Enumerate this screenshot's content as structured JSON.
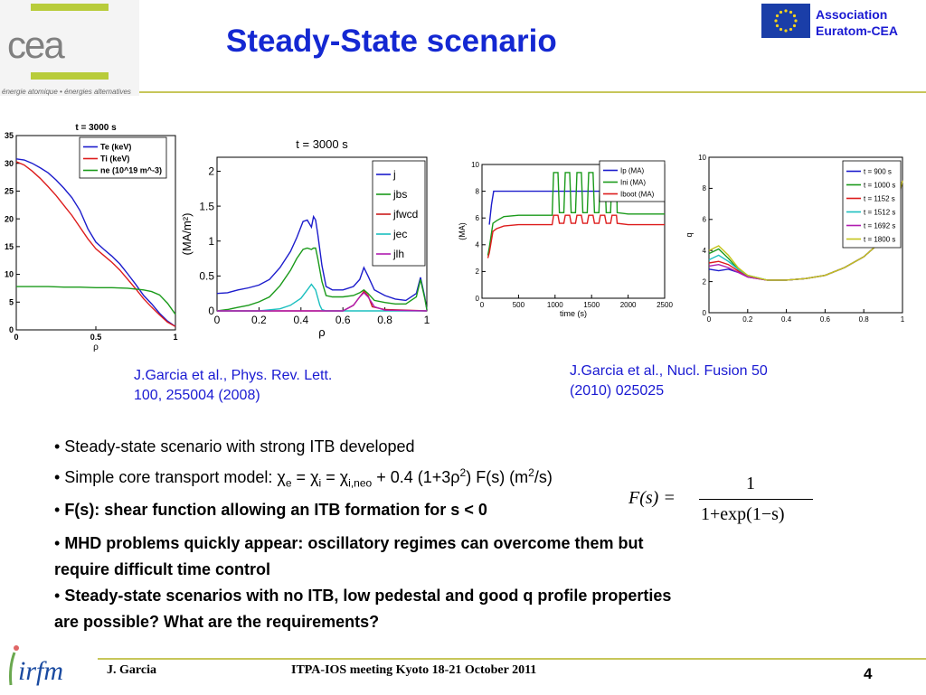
{
  "header": {
    "logo_text": "cea",
    "logo_tagline": "énergie atomique • énergies alternatives",
    "title": "Steady-State scenario",
    "association_line1": "Association",
    "association_line2": "Euratom-CEA"
  },
  "references": {
    "ref1_line1": "J.Garcia  et al., Phys. Rev. Lett.",
    "ref1_line2": "100, 255004 (2008)",
    "ref2_line1": "J.Garcia  et al., Nucl. Fusion 50",
    "ref2_line2": "(2010) 025025"
  },
  "bullets": {
    "b1": "• Steady-state scenario with strong ITB developed",
    "b2_prefix": "• Simple core transport model: ",
    "b2_chi": "χ",
    "b2_sub_e": "e",
    "b2_eq1": " = ",
    "b2_sub_i": "i",
    "b2_eq2": " = ",
    "b2_sub_ineo": "i,neo",
    "b2_rest1": " + 0.4 (1+3",
    "b2_rho": "ρ",
    "b2_sup2": "2",
    "b2_rest2": ") F(s)   (m",
    "b2_sup2b": "2",
    "b2_rest3": "/s)",
    "b3_bullet": "• ",
    "b3": "F(s): shear function allowing an ITB formation for s < 0",
    "b4_bullet": "• ",
    "b4_line1": "MHD problems quickly appear: oscillatory regimes can overcome them but",
    "b4_line2": "require difficult time control",
    "b5_bullet": "• ",
    "b5_line1": "Steady-state scenarios with no ITB, low pedestal and good q profile properties",
    "b5_line2": "are possible? What are the requirements?"
  },
  "equation": {
    "lhs": "F(s) =",
    "numerator": "1",
    "denominator": "1+exp(1−s)"
  },
  "footer": {
    "author": "J. Garcia",
    "meeting": "ITPA-IOS meeting Kyoto 18-21 October 2011",
    "page": "4",
    "logo": "irfm"
  },
  "chart_data": [
    {
      "type": "line",
      "title": "t = 3000 s",
      "xlabel": "ρ",
      "ylabel": "",
      "xlim": [
        0,
        1
      ],
      "ylim": [
        0,
        35
      ],
      "xticks": [
        "0",
        "0.5",
        "1"
      ],
      "yticks": [
        "0",
        "5",
        "10",
        "15",
        "20",
        "25",
        "30",
        "35"
      ],
      "legend": "top-right",
      "series": [
        {
          "name": "Te (keV)",
          "color": "#1c1ccc",
          "x": [
            0,
            0.05,
            0.1,
            0.15,
            0.2,
            0.25,
            0.3,
            0.35,
            0.4,
            0.45,
            0.5,
            0.55,
            0.6,
            0.65,
            0.7,
            0.75,
            0.8,
            0.85,
            0.9,
            0.95,
            1.0
          ],
          "y": [
            30.8,
            30.6,
            30.0,
            29.2,
            28.3,
            27.0,
            25.5,
            23.8,
            21.5,
            18.2,
            15.8,
            14.5,
            13.3,
            11.9,
            10.1,
            8.2,
            6.2,
            4.7,
            3.0,
            1.6,
            0.6
          ]
        },
        {
          "name": "Ti (keV)",
          "color": "#dd1c1c",
          "x": [
            0,
            0.05,
            0.1,
            0.15,
            0.2,
            0.25,
            0.3,
            0.35,
            0.4,
            0.45,
            0.5,
            0.55,
            0.6,
            0.65,
            0.7,
            0.75,
            0.8,
            0.85,
            0.9,
            0.95,
            1.0
          ],
          "y": [
            30.3,
            29.7,
            28.6,
            27.3,
            25.8,
            24.2,
            22.4,
            20.6,
            18.5,
            16.4,
            14.6,
            13.4,
            12.2,
            10.8,
            9.1,
            7.4,
            5.6,
            4.1,
            2.7,
            1.4,
            0.6
          ]
        },
        {
          "name": "ne (10^19 m^-3)",
          "color": "#1a9a1a",
          "x": [
            0,
            0.1,
            0.2,
            0.3,
            0.4,
            0.5,
            0.6,
            0.7,
            0.8,
            0.85,
            0.9,
            0.95,
            1.0
          ],
          "y": [
            7.8,
            7.8,
            7.8,
            7.7,
            7.7,
            7.6,
            7.6,
            7.5,
            7.2,
            6.9,
            6.3,
            4.8,
            2.8
          ]
        }
      ]
    },
    {
      "type": "line",
      "title": "t = 3000 s",
      "xlabel": "ρ",
      "ylabel": "(MA/m²)",
      "xlim": [
        0,
        1
      ],
      "ylim": [
        0,
        2.2
      ],
      "xticks": [
        "0",
        "0.2",
        "0.4",
        "0.6",
        "0.8",
        "1"
      ],
      "yticks": [
        "0",
        "0.5",
        "1",
        "1.5",
        "2"
      ],
      "legend": "top-right",
      "series": [
        {
          "name": "j",
          "color": "#1c1ccc",
          "x": [
            0,
            0.05,
            0.1,
            0.15,
            0.2,
            0.25,
            0.3,
            0.35,
            0.38,
            0.41,
            0.43,
            0.45,
            0.46,
            0.47,
            0.48,
            0.5,
            0.52,
            0.55,
            0.6,
            0.65,
            0.68,
            0.7,
            0.72,
            0.75,
            0.8,
            0.85,
            0.9,
            0.95,
            0.97,
            0.99,
            1.0
          ],
          "y": [
            0.25,
            0.26,
            0.3,
            0.33,
            0.37,
            0.45,
            0.62,
            0.85,
            1.05,
            1.28,
            1.3,
            1.2,
            1.35,
            1.3,
            1.1,
            0.65,
            0.35,
            0.3,
            0.3,
            0.35,
            0.45,
            0.62,
            0.5,
            0.3,
            0.22,
            0.17,
            0.15,
            0.25,
            0.48,
            0.2,
            0.02
          ]
        },
        {
          "name": "jbs",
          "color": "#1a9a1a",
          "x": [
            0,
            0.05,
            0.1,
            0.15,
            0.2,
            0.25,
            0.3,
            0.35,
            0.38,
            0.41,
            0.43,
            0.45,
            0.46,
            0.47,
            0.48,
            0.5,
            0.52,
            0.55,
            0.6,
            0.65,
            0.68,
            0.7,
            0.72,
            0.75,
            0.8,
            0.85,
            0.9,
            0.95,
            0.97,
            0.99,
            1.0
          ],
          "y": [
            0,
            0.02,
            0.05,
            0.08,
            0.13,
            0.2,
            0.36,
            0.58,
            0.75,
            0.88,
            0.9,
            0.88,
            0.9,
            0.9,
            0.75,
            0.42,
            0.22,
            0.2,
            0.2,
            0.22,
            0.26,
            0.3,
            0.25,
            0.15,
            0.12,
            0.1,
            0.1,
            0.2,
            0.45,
            0.18,
            0.02
          ]
        },
        {
          "name": "jfwcd",
          "color": "#cc1c1c",
          "x": [
            0,
            0.1,
            0.2,
            0.3,
            0.4,
            0.5,
            0.55,
            0.6,
            0.65,
            0.68,
            0.7,
            0.72,
            0.74,
            0.8,
            0.9,
            1.0
          ],
          "y": [
            0,
            0,
            0,
            0,
            0,
            0,
            0,
            0,
            0.08,
            0.2,
            0.28,
            0.22,
            0.06,
            0.02,
            0.01,
            0
          ]
        },
        {
          "name": "jec",
          "color": "#1bbfbf",
          "x": [
            0,
            0.2,
            0.3,
            0.35,
            0.4,
            0.43,
            0.45,
            0.47,
            0.49,
            0.5,
            0.52,
            0.6,
            1.0
          ],
          "y": [
            0,
            0,
            0.03,
            0.08,
            0.18,
            0.3,
            0.38,
            0.3,
            0.08,
            0.02,
            0,
            0,
            0
          ]
        },
        {
          "name": "jlh",
          "color": "#b01cb0",
          "x": [
            0,
            0.2,
            0.4,
            0.5,
            0.55,
            0.6,
            0.65,
            0.68,
            0.7,
            0.72,
            0.75,
            0.8,
            1.0
          ],
          "y": [
            0,
            0,
            0,
            0,
            0,
            0,
            0.08,
            0.2,
            0.26,
            0.2,
            0.06,
            0.01,
            0
          ]
        }
      ]
    },
    {
      "type": "line",
      "title": "",
      "xlabel": "time (s)",
      "ylabel": "(MA)",
      "xlim": [
        0,
        2500
      ],
      "ylim": [
        0,
        10
      ],
      "xticks": [
        "0",
        "500",
        "1000",
        "1500",
        "2000",
        "2500"
      ],
      "yticks": [
        "0",
        "2",
        "4",
        "6",
        "8",
        "10"
      ],
      "legend": "top-right",
      "series": [
        {
          "name": "Ip (MA)",
          "color": "#1c1ccc",
          "x": [
            100,
            130,
            160,
            200,
            500,
            1000,
            1500,
            2000,
            2500
          ],
          "y": [
            5.5,
            7.0,
            8.0,
            8.0,
            8.0,
            8.0,
            8.0,
            8.0,
            8.0
          ]
        },
        {
          "name": "Ini (MA)",
          "color": "#1a9a1a",
          "x": [
            80,
            100,
            150,
            200,
            300,
            500,
            700,
            900,
            960,
            980,
            1040,
            1060,
            1120,
            1140,
            1200,
            1220,
            1280,
            1300,
            1360,
            1380,
            1440,
            1460,
            1520,
            1540,
            1600,
            1620,
            1680,
            1700,
            1760,
            1780,
            1840,
            1850,
            2000,
            2200,
            2500
          ],
          "y": [
            3.2,
            3.8,
            5.6,
            5.8,
            6.1,
            6.2,
            6.2,
            6.2,
            6.2,
            9.4,
            9.4,
            6.4,
            6.4,
            9.4,
            9.4,
            6.4,
            6.4,
            9.4,
            9.4,
            6.4,
            6.4,
            9.4,
            9.4,
            6.4,
            6.4,
            9.4,
            9.4,
            6.4,
            6.4,
            9.4,
            9.4,
            6.4,
            6.3,
            6.3,
            6.3
          ]
        },
        {
          "name": "Iboot (MA)",
          "color": "#dd1c1c",
          "x": [
            80,
            100,
            150,
            200,
            300,
            500,
            700,
            900,
            960,
            980,
            1040,
            1060,
            1120,
            1140,
            1200,
            1220,
            1280,
            1300,
            1360,
            1380,
            1440,
            1460,
            1520,
            1540,
            1600,
            1620,
            1680,
            1700,
            1760,
            1780,
            1840,
            1850,
            2000,
            2200,
            2500
          ],
          "y": [
            3.0,
            3.4,
            5.0,
            5.2,
            5.4,
            5.5,
            5.5,
            5.5,
            5.5,
            6.2,
            6.2,
            5.6,
            5.6,
            6.2,
            6.2,
            5.6,
            5.6,
            6.2,
            6.2,
            5.6,
            5.6,
            6.2,
            6.2,
            5.6,
            5.6,
            6.2,
            6.2,
            5.6,
            5.6,
            6.2,
            6.2,
            5.6,
            5.5,
            5.5,
            5.5
          ]
        }
      ]
    },
    {
      "type": "line",
      "title": "",
      "xlabel": "ρ",
      "ylabel": "q",
      "xlim": [
        0,
        1
      ],
      "ylim": [
        0,
        10
      ],
      "xticks": [
        "0",
        "0.2",
        "0.4",
        "0.6",
        "0.8",
        "1"
      ],
      "yticks": [
        "0",
        "2",
        "4",
        "6",
        "8",
        "10"
      ],
      "legend": "top-right",
      "series": [
        {
          "name": "t = 900 s",
          "color": "#1c1ccc",
          "x": [
            0,
            0.05,
            0.1,
            0.15,
            0.2,
            0.3,
            0.4,
            0.5,
            0.6,
            0.7,
            0.8,
            0.9,
            0.95,
            1.0
          ],
          "y": [
            2.8,
            2.7,
            2.8,
            2.6,
            2.3,
            2.1,
            2.1,
            2.2,
            2.4,
            2.9,
            3.6,
            4.7,
            6.0,
            8.5
          ]
        },
        {
          "name": "t = 1000 s",
          "color": "#1a9a1a",
          "x": [
            0,
            0.05,
            0.1,
            0.15,
            0.2,
            0.3,
            0.4,
            0.5,
            0.6,
            0.7,
            0.8,
            0.9,
            0.95,
            1.0
          ],
          "y": [
            3.8,
            4.1,
            3.5,
            2.8,
            2.4,
            2.1,
            2.1,
            2.2,
            2.4,
            2.9,
            3.6,
            4.7,
            6.0,
            8.5
          ]
        },
        {
          "name": "t = 1152 s",
          "color": "#dd1c1c",
          "x": [
            0,
            0.05,
            0.1,
            0.15,
            0.2,
            0.3,
            0.4,
            0.5,
            0.6,
            0.7,
            0.8,
            0.9,
            0.95,
            1.0
          ],
          "y": [
            3.2,
            3.3,
            3.1,
            2.7,
            2.3,
            2.1,
            2.1,
            2.2,
            2.4,
            2.9,
            3.6,
            4.7,
            6.0,
            8.5
          ]
        },
        {
          "name": "t = 1512 s",
          "color": "#1bbfbf",
          "x": [
            0,
            0.05,
            0.1,
            0.15,
            0.2,
            0.3,
            0.4,
            0.5,
            0.6,
            0.7,
            0.8,
            0.9,
            0.95,
            1.0
          ],
          "y": [
            3.4,
            3.7,
            3.3,
            2.8,
            2.4,
            2.1,
            2.1,
            2.2,
            2.4,
            2.9,
            3.6,
            4.7,
            6.0,
            8.5
          ]
        },
        {
          "name": "t = 1692 s",
          "color": "#b01cb0",
          "x": [
            0,
            0.05,
            0.1,
            0.15,
            0.2,
            0.3,
            0.4,
            0.5,
            0.6,
            0.7,
            0.8,
            0.9,
            0.95,
            1.0
          ],
          "y": [
            3.0,
            3.1,
            2.9,
            2.6,
            2.3,
            2.1,
            2.1,
            2.2,
            2.4,
            2.9,
            3.6,
            4.7,
            6.0,
            8.5
          ]
        },
        {
          "name": "t = 1800 s",
          "color": "#c4c41a",
          "x": [
            0,
            0.05,
            0.1,
            0.15,
            0.2,
            0.3,
            0.4,
            0.5,
            0.6,
            0.7,
            0.8,
            0.9,
            0.95,
            1.0
          ],
          "y": [
            4.0,
            4.3,
            3.7,
            2.9,
            2.4,
            2.1,
            2.1,
            2.2,
            2.4,
            2.9,
            3.6,
            4.7,
            6.0,
            8.5
          ]
        }
      ]
    }
  ]
}
